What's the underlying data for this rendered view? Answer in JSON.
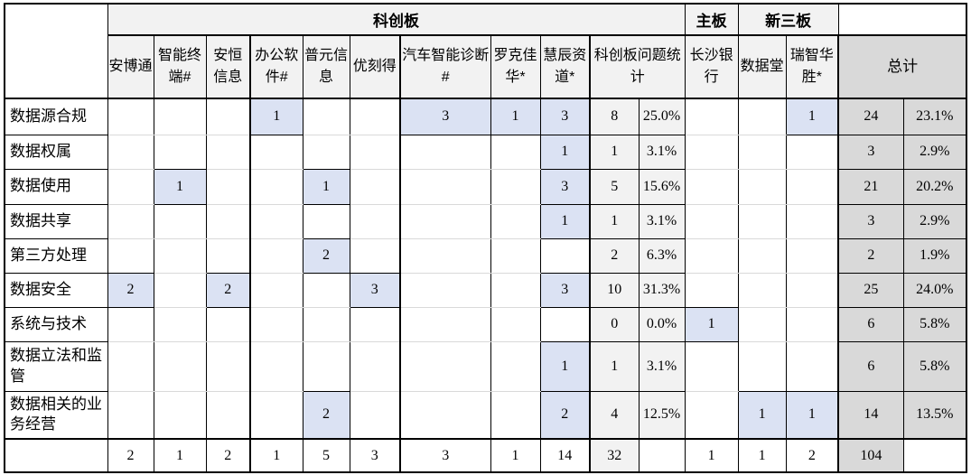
{
  "colors": {
    "hl": "#dbe2f3",
    "hdr": "#f2f2f2",
    "total": "#d9d9d9",
    "grid": "#d9d9d9",
    "line": "#000000"
  },
  "chart_data": {
    "type": "table",
    "title": "",
    "column_groups": [
      {
        "label": "科创板",
        "span": 11
      },
      {
        "label": "主板",
        "span": 1
      },
      {
        "label": "新三板",
        "span": 2
      },
      {
        "label": "",
        "span": 2
      }
    ],
    "columns": [
      {
        "label": "安博通"
      },
      {
        "label": "智能终端#"
      },
      {
        "label": "安恒信息"
      },
      {
        "label": "办公软件#"
      },
      {
        "label": "普元信息"
      },
      {
        "label": "优刻得"
      },
      {
        "label": "汽车智能诊断#"
      },
      {
        "label": "罗克佳华*"
      },
      {
        "label": "慧辰资道*"
      },
      {
        "label": "科创板问题统计",
        "span": 2
      },
      {
        "label": "长沙银行"
      },
      {
        "label": "数据堂"
      },
      {
        "label": "瑞智华胜*"
      },
      {
        "label": "总计",
        "span": 2,
        "emphasis": "total"
      }
    ],
    "value_column_keys": [
      "安博通",
      "智能终端#",
      "安恒信息",
      "办公软件#",
      "普元信息",
      "优刻得",
      "汽车智能诊断#",
      "罗克佳华*",
      "慧辰资道*",
      "科创板问题统计-数",
      "科创板问题统计-百分比",
      "长沙银行",
      "数据堂",
      "瑞智华胜*",
      "总计-数",
      "总计-百分比"
    ],
    "rows": [
      {
        "label": "数据源合规",
        "values": [
          "",
          "",
          "",
          1,
          "",
          "",
          3,
          1,
          3,
          8,
          "25.0%",
          "",
          "",
          1,
          24,
          "23.1%"
        ]
      },
      {
        "label": "数据权属",
        "values": [
          "",
          "",
          "",
          "",
          "",
          "",
          "",
          "",
          1,
          1,
          "3.1%",
          "",
          "",
          "",
          3,
          "2.9%"
        ]
      },
      {
        "label": "数据使用",
        "values": [
          "",
          1,
          "",
          "",
          1,
          "",
          "",
          "",
          3,
          5,
          "15.6%",
          "",
          "",
          "",
          21,
          "20.2%"
        ]
      },
      {
        "label": "数据共享",
        "values": [
          "",
          "",
          "",
          "",
          "",
          "",
          "",
          "",
          1,
          1,
          "3.1%",
          "",
          "",
          "",
          3,
          "2.9%"
        ]
      },
      {
        "label": "第三方处理",
        "values": [
          "",
          "",
          "",
          "",
          2,
          "",
          "",
          "",
          "",
          2,
          "6.3%",
          "",
          "",
          "",
          2,
          "1.9%"
        ]
      },
      {
        "label": "数据安全",
        "values": [
          2,
          "",
          2,
          "",
          "",
          3,
          "",
          "",
          3,
          10,
          "31.3%",
          "",
          "",
          "",
          25,
          "24.0%"
        ]
      },
      {
        "label": "系统与技术",
        "values": [
          "",
          "",
          "",
          "",
          "",
          "",
          "",
          "",
          "",
          0,
          "0.0%",
          1,
          "",
          "",
          6,
          "5.8%"
        ]
      },
      {
        "label": "数据立法和监管",
        "values": [
          "",
          "",
          "",
          "",
          "",
          "",
          "",
          "",
          1,
          1,
          "3.1%",
          "",
          "",
          "",
          6,
          "5.8%"
        ]
      },
      {
        "label": "数据相关的业务经营",
        "values": [
          "",
          "",
          "",
          "",
          2,
          "",
          "",
          "",
          2,
          4,
          "12.5%",
          "",
          1,
          1,
          14,
          "13.5%"
        ]
      }
    ],
    "footer_row": {
      "label": "",
      "values": [
        2,
        1,
        2,
        1,
        5,
        3,
        3,
        1,
        14,
        32,
        "",
        1,
        1,
        2,
        104,
        ""
      ]
    }
  }
}
